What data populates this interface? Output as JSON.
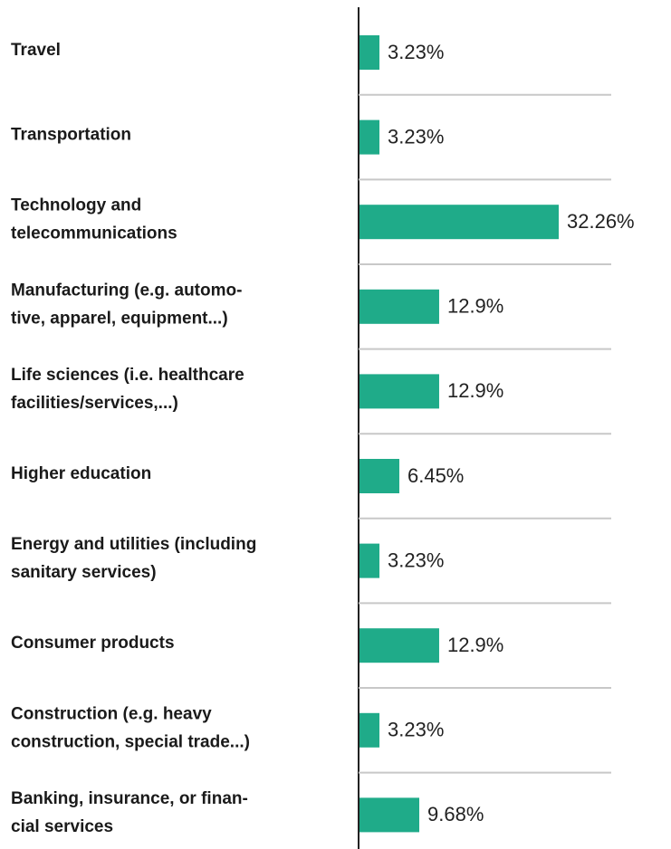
{
  "chart_data": {
    "type": "bar",
    "orientation": "horizontal",
    "categories": [
      [
        "Travel"
      ],
      [
        "Transportation"
      ],
      [
        "Technology and",
        "telecommunications"
      ],
      [
        "Manufacturing (e.g. automo-",
        "tive, apparel, equipment...)"
      ],
      [
        "Life sciences (i.e. healthcare",
        "facilities/services,...)"
      ],
      [
        "Higher education"
      ],
      [
        "Energy and utilities (including",
        "sanitary services)"
      ],
      [
        "Consumer products"
      ],
      [
        "Construction (e.g. heavy",
        "construction, special trade...)"
      ],
      [
        "Banking, insurance, or finan-",
        "cial services"
      ]
    ],
    "values": [
      3.23,
      3.23,
      32.26,
      12.9,
      12.9,
      6.45,
      3.23,
      12.9,
      3.23,
      9.68
    ],
    "value_labels": [
      "3.23%",
      "3.23%",
      "32.26%",
      "12.9%",
      "12.9%",
      "6.45%",
      "3.23%",
      "12.9%",
      "3.23%",
      "9.68%"
    ],
    "color": "#1fab89"
  }
}
